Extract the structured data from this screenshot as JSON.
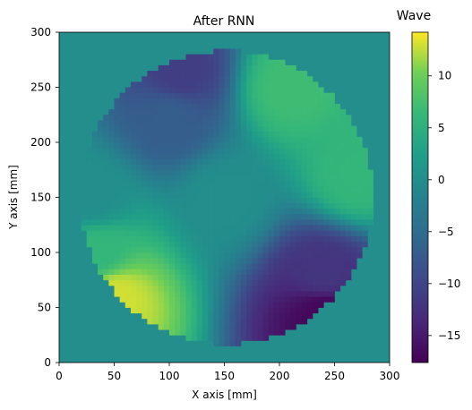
{
  "chart_data": {
    "type": "heatmap",
    "title": "After RNN",
    "xlabel": "X axis [mm]",
    "ylabel": "Y axis [mm]",
    "xlim": [
      0,
      300
    ],
    "ylim": [
      0,
      300
    ],
    "x_ticks": [
      "0",
      "50",
      "100",
      "150",
      "200",
      "250",
      "300"
    ],
    "y_ticks": [
      "0",
      "50",
      "100",
      "150",
      "200",
      "250",
      "300"
    ],
    "grid": false,
    "colormap": "viridis",
    "colorbar": {
      "label": "Wave",
      "range": [
        -17.6,
        14.2
      ],
      "ticks": [
        "10",
        "5",
        "0",
        "−5",
        "−10",
        "−15"
      ]
    },
    "background_value": 0,
    "disk": {
      "center": [
        152,
        150
      ],
      "radius": 133,
      "cell_size_mm": 5
    },
    "approx_values": [
      {
        "x": 50,
        "y": 60,
        "value": 13
      },
      {
        "x": 35,
        "y": 100,
        "value": 6
      },
      {
        "x": 30,
        "y": 150,
        "value": 0
      },
      {
        "x": 100,
        "y": 220,
        "value": -7
      },
      {
        "x": 110,
        "y": 265,
        "value": -11
      },
      {
        "x": 210,
        "y": 250,
        "value": 7
      },
      {
        "x": 270,
        "y": 170,
        "value": 6
      },
      {
        "x": 240,
        "y": 80,
        "value": -12
      },
      {
        "x": 240,
        "y": 45,
        "value": -17
      },
      {
        "x": 150,
        "y": 150,
        "value": 0
      }
    ]
  }
}
